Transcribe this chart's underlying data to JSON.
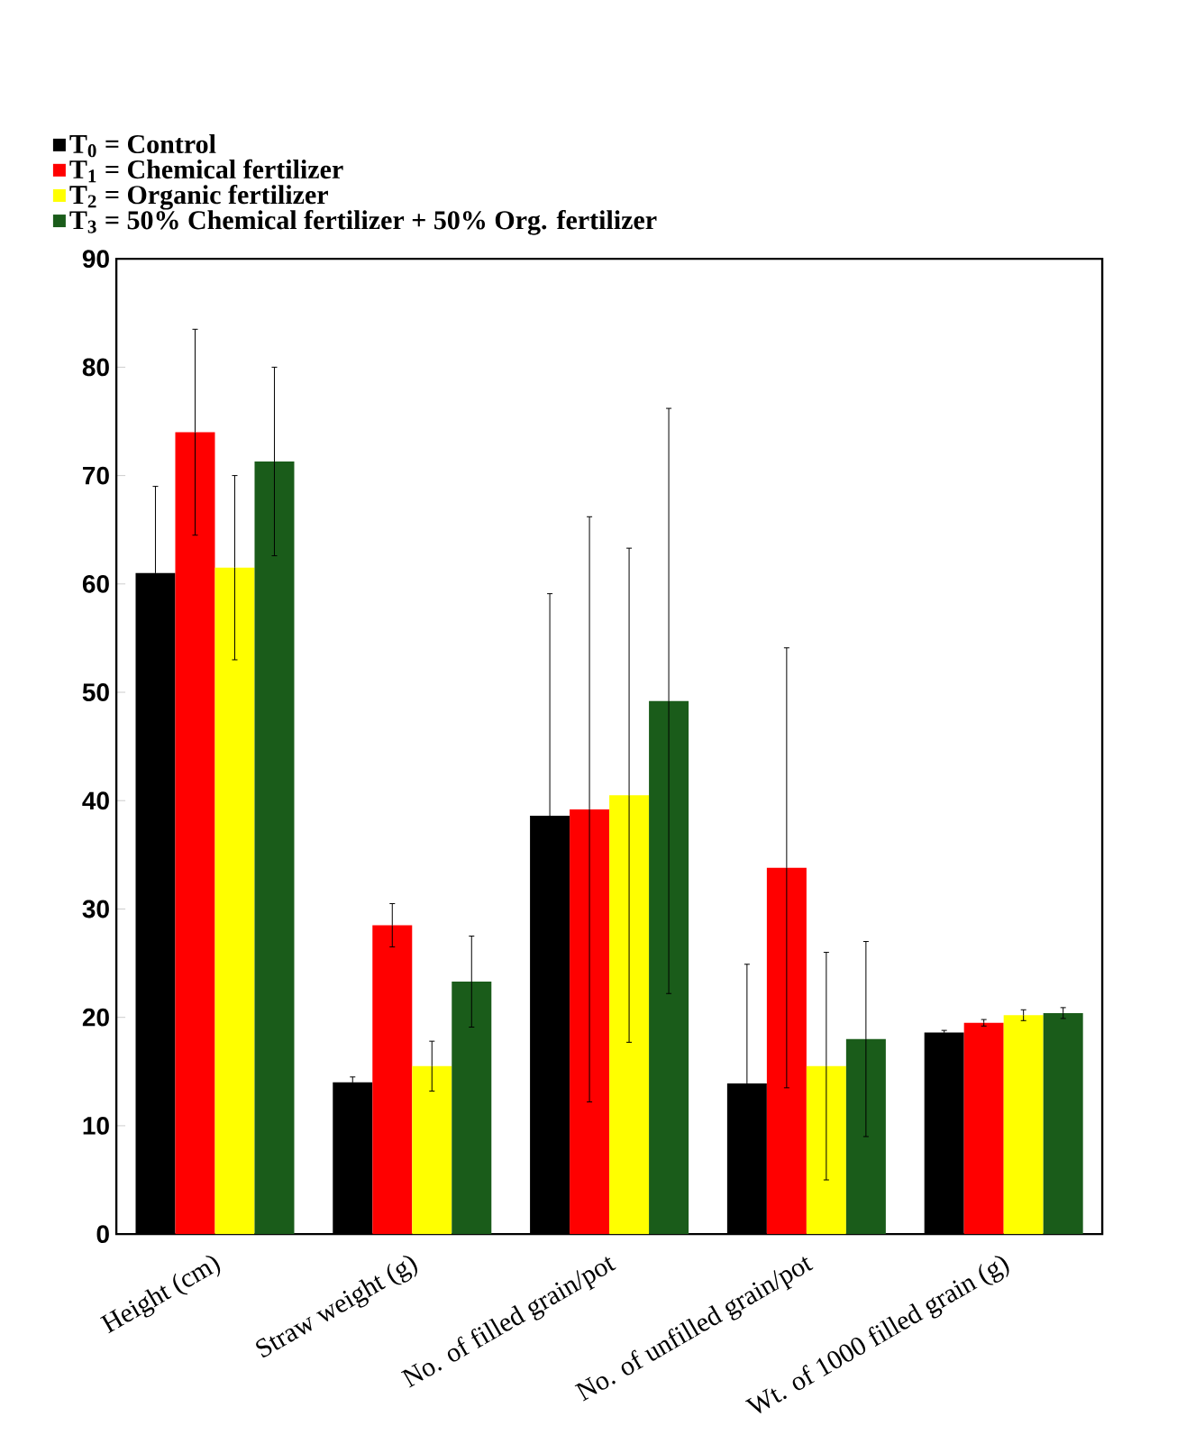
{
  "chart_data": {
    "type": "bar",
    "categories": [
      "Height (cm)",
      "Straw weight (g)",
      "No. of filled grain/pot",
      "No. of unfilled grain/pot",
      "Wt. of 1000 filled grain (g)"
    ],
    "series": [
      {
        "name": "**T**$_{0}$  = Control",
        "color": "#000000",
        "values": [
          61,
          14,
          38.6,
          13.9,
          18.6
        ],
        "errors": [
          8,
          0.5,
          20.5,
          11,
          0.2
        ]
      },
      {
        "name": "**T**$_{1}$  =  Chemical fertilizer",
        "color": "#ff0000",
        "values": [
          74,
          28.5,
          39.2,
          33.8,
          19.5
        ],
        "errors": [
          9.5,
          2,
          27,
          20.3,
          0.3
        ]
      },
      {
        "name": "**T**$_{2}$  =  Organic fertilizer",
        "color": "#ffff00",
        "values": [
          61.5,
          15.5,
          40.5,
          15.5,
          20.2
        ],
        "errors": [
          8.5,
          2.3,
          22.8,
          10.5,
          0.5
        ]
      },
      {
        "name": "**T**$_{3}$  =  50% Chemical fertilizer + 50% Org. fertilizer",
        "color": "#1a5c1a",
        "values": [
          71.3,
          23.3,
          49.2,
          18,
          20.4
        ],
        "errors": [
          8.7,
          4.2,
          27,
          9,
          0.5
        ]
      }
    ],
    "ylim": [
      0,
      90
    ],
    "yticks": [
      0,
      10,
      20,
      30,
      40,
      50,
      60,
      70,
      80,
      90
    ],
    "legend": "top left"
  }
}
